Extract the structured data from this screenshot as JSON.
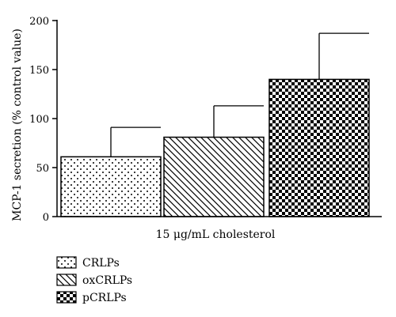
{
  "chart_data": {
    "type": "bar",
    "categories": [
      "CRLPs",
      "oxCRLPs",
      "pCRLPs"
    ],
    "values": [
      61,
      81,
      140
    ],
    "error_bars": [
      30,
      32,
      47
    ],
    "patterns": [
      "dots",
      "diagonal-hatch",
      "checkerboard"
    ],
    "title": "",
    "xlabel": "15 μg/mL cholesterol",
    "ylabel": "MCP-1 secretion (% control value)",
    "ylim": [
      0,
      200
    ],
    "yticks": [
      0,
      50,
      100,
      150,
      200
    ],
    "grid": false,
    "legend": {
      "placement": "bottom-left",
      "entries": [
        "CRLPs",
        "oxCRLPs",
        "pCRLPs"
      ]
    }
  }
}
